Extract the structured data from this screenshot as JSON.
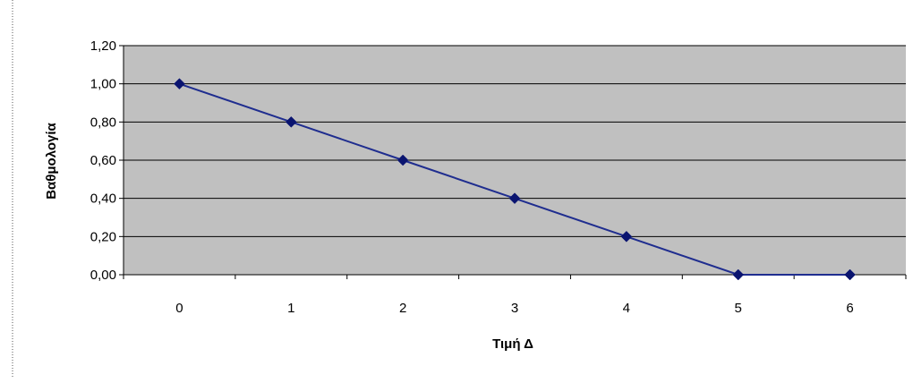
{
  "chart_data": {
    "type": "line",
    "title": "",
    "xlabel": "Τιμή Δ",
    "ylabel": "Βαθμολογία",
    "x": [
      0,
      1,
      2,
      3,
      4,
      5,
      6
    ],
    "x_tick_labels": [
      "0",
      "1",
      "2",
      "3",
      "4",
      "5",
      "6"
    ],
    "y_tick_labels": [
      "0,00",
      "0,20",
      "0,40",
      "0,60",
      "0,80",
      "1,00",
      "1,20"
    ],
    "y_ticks": [
      0,
      0.2,
      0.4,
      0.6,
      0.8,
      1.0,
      1.2
    ],
    "ylim": [
      0,
      1.2
    ],
    "grid": true,
    "legend": "none",
    "series": [
      {
        "values": [
          1.0,
          0.8,
          0.6,
          0.4,
          0.2,
          0.0,
          0.0
        ]
      }
    ],
    "colors": {
      "plot_background": "#c0c0c0",
      "gridline": "#000000",
      "series_line": "#1f2d8f",
      "marker": "#0a1470",
      "border_dots": "#555555"
    }
  }
}
